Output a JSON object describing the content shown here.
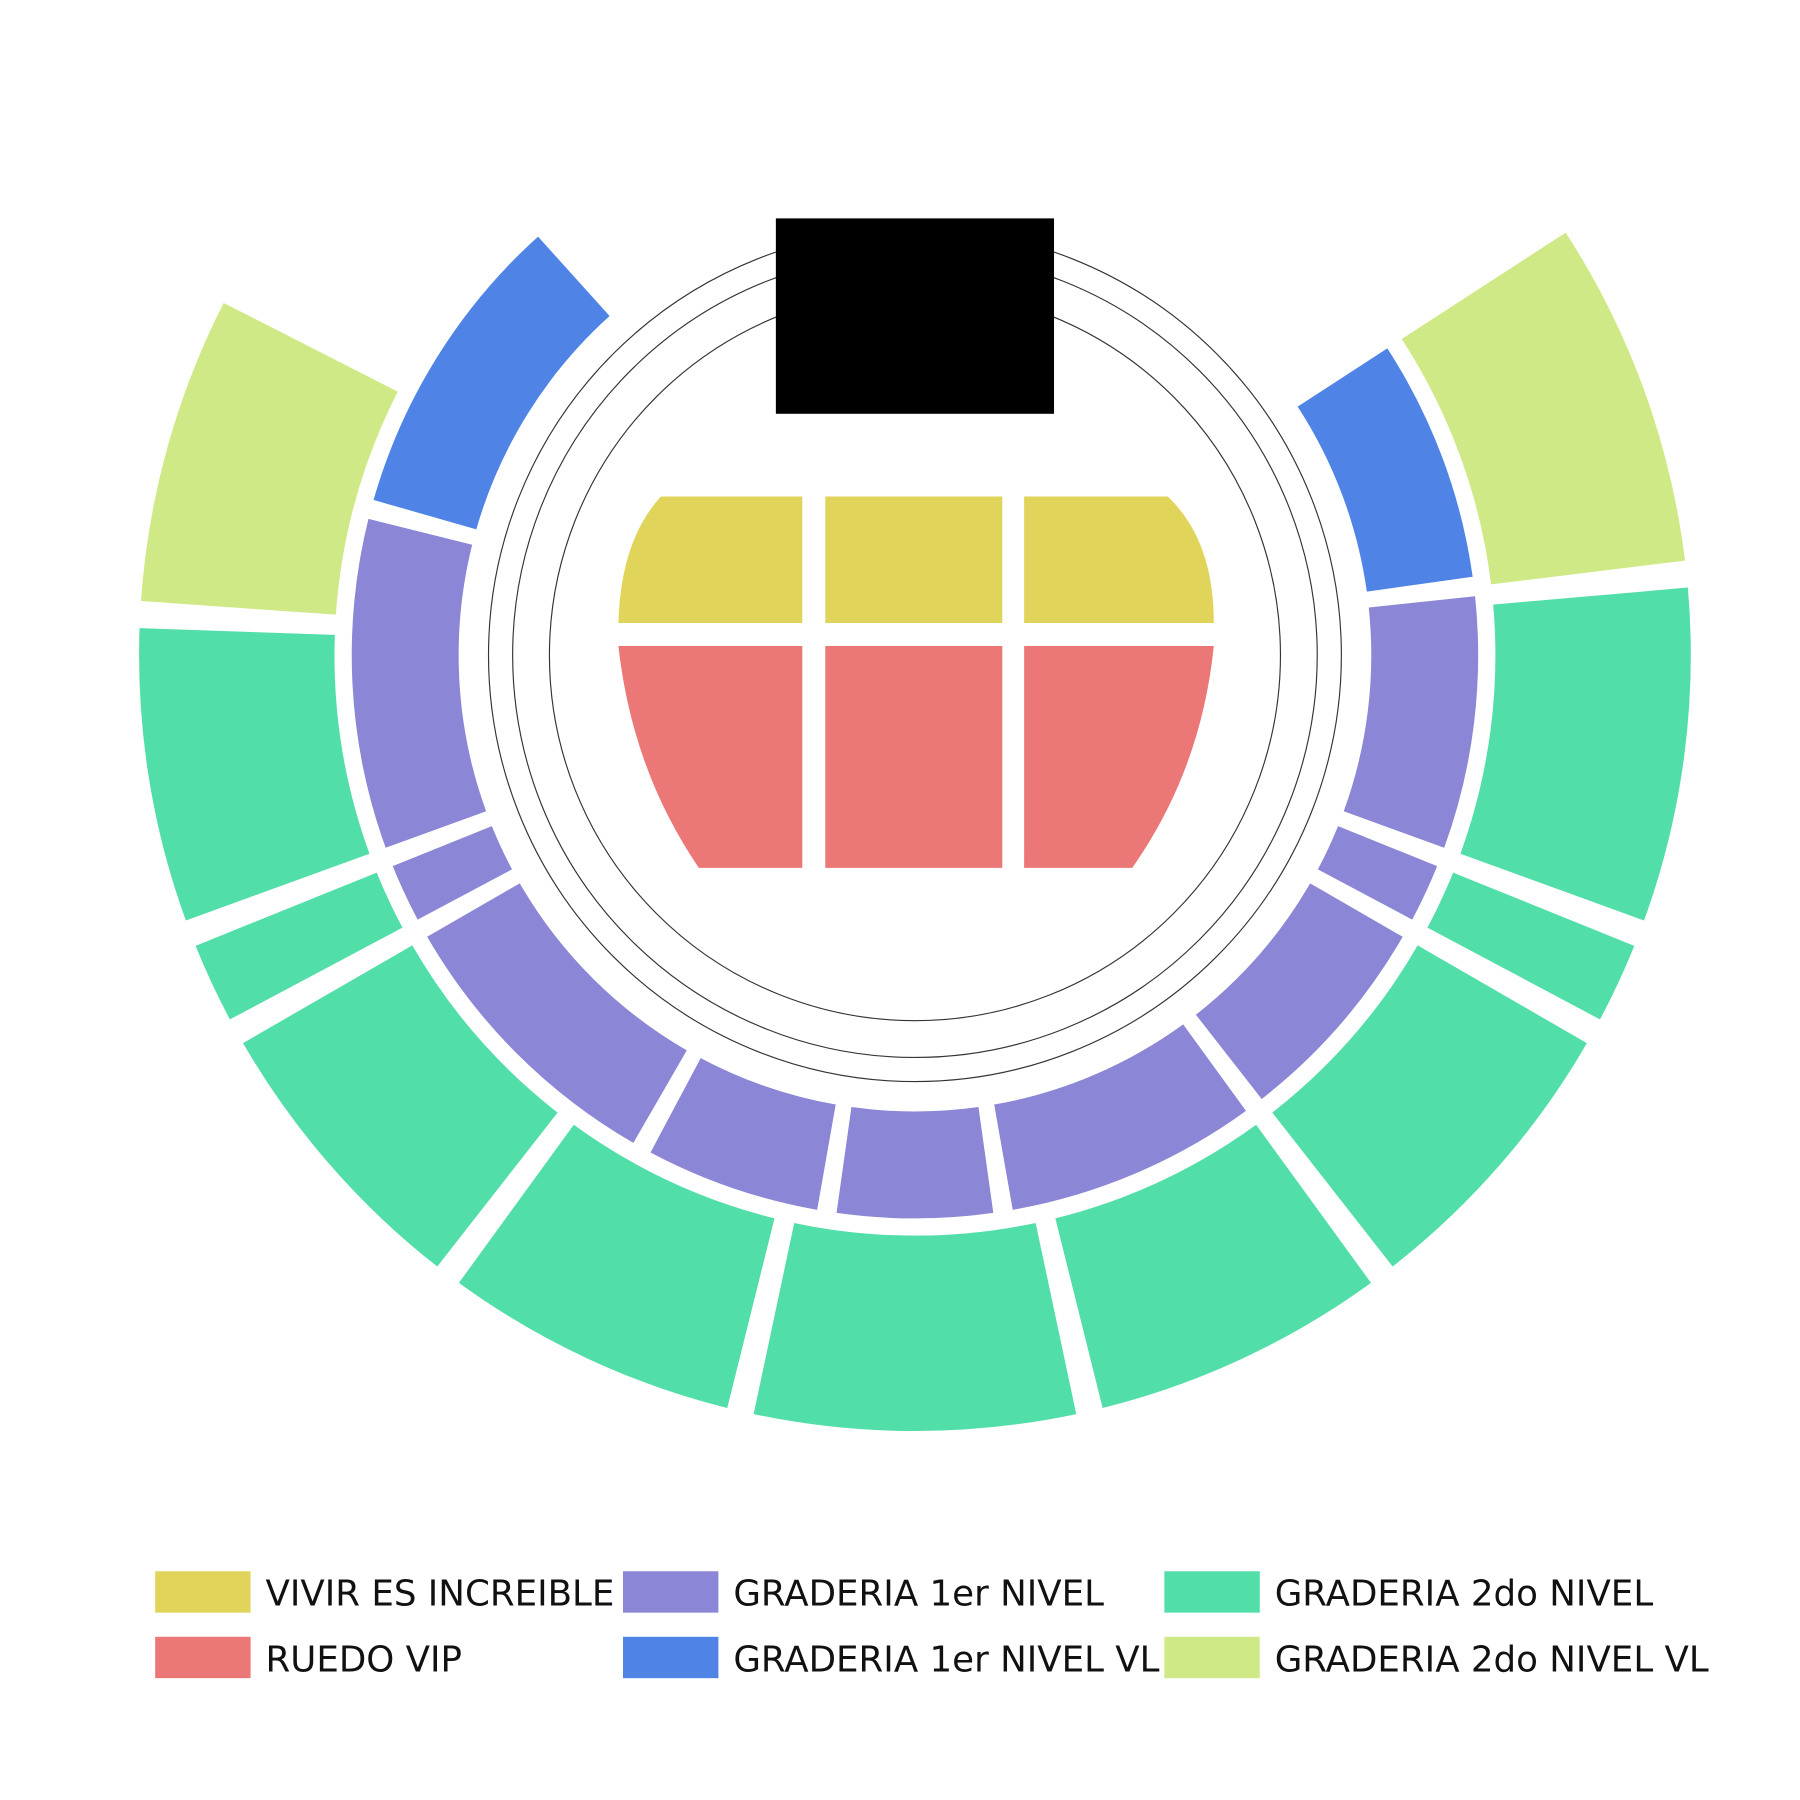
{
  "legend": {
    "items": [
      {
        "label": "VIVIR ES INCREIBLE",
        "color": "#e0d55a"
      },
      {
        "label": "RUEDO VIP",
        "color": "#ec7777"
      },
      {
        "label": "GRADERIA 1er NIVEL",
        "color": "#8b86d6"
      },
      {
        "label": "GRADERIA 1er NIVEL VL",
        "color": "#4f84e6"
      },
      {
        "label": "GRADERIA 2do NIVEL",
        "color": "#52dea8"
      },
      {
        "label": "GRADERIA 2do NIVEL VL",
        "color": "#cfe986"
      }
    ]
  }
}
